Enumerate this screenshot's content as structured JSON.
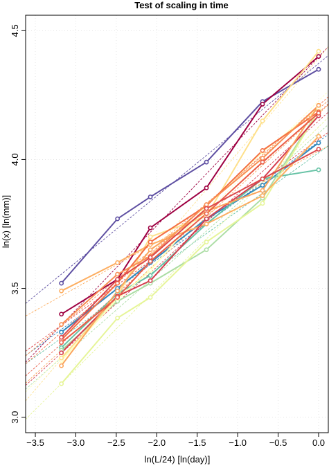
{
  "chart_data": {
    "type": "line",
    "title": "Test of scaling in time",
    "xlabel": "ln(L/24) [ln(day)]",
    "ylabel": "ln(x) [ln(mm)]",
    "xlim": [
      -3.62,
      0.12
    ],
    "ylim": [
      2.94,
      4.56
    ],
    "xticks": [
      -3.5,
      -3.0,
      -2.5,
      -2.0,
      -1.5,
      -1.0,
      -0.5,
      0.0
    ],
    "xtick_labels": [
      "−3.5",
      "−3.0",
      "−2.5",
      "−2.0",
      "−1.5",
      "−1.0",
      "−0.5",
      "0.0"
    ],
    "yticks": [
      3.0,
      3.5,
      4.0,
      4.5
    ],
    "ytick_labels": [
      "3.0",
      "3.5",
      "4.0",
      "4.5"
    ],
    "grid": true,
    "x": [
      -3.178,
      -2.485,
      -2.079,
      -1.386,
      -0.693,
      0.0
    ],
    "series": [
      {
        "color": "#5e4fa2",
        "values": [
          3.52,
          3.77,
          3.855,
          3.99,
          4.225,
          4.35
        ]
      },
      {
        "color": "#9e0142",
        "values": [
          3.4,
          3.535,
          3.735,
          3.89,
          4.215,
          4.4
        ]
      },
      {
        "color": "#3288bd",
        "values": [
          3.33,
          3.5,
          3.6,
          3.77,
          3.9,
          4.065
        ]
      },
      {
        "color": "#66c2a5",
        "values": [
          3.27,
          3.48,
          3.55,
          3.75,
          3.925,
          3.96
        ]
      },
      {
        "color": "#abdda4",
        "values": [
          3.26,
          3.45,
          3.52,
          3.65,
          3.85,
          4.19
        ]
      },
      {
        "color": "#e6f598",
        "values": [
          3.13,
          3.385,
          3.465,
          3.68,
          3.83,
          4.19
        ]
      },
      {
        "color": "#ffffbf",
        "values": [
          3.22,
          3.46,
          3.57,
          3.82,
          4.03,
          4.2
        ]
      },
      {
        "color": "#fee08b",
        "values": [
          3.23,
          3.47,
          3.7,
          3.78,
          4.15,
          4.42
        ]
      },
      {
        "color": "#fdae61",
        "values": [
          3.49,
          3.6,
          3.67,
          3.75,
          3.86,
          4.09
        ]
      },
      {
        "color": "#f46d43",
        "values": [
          3.3,
          3.52,
          3.68,
          3.82,
          4.035,
          4.185
        ]
      },
      {
        "color": "#d53e4f",
        "values": [
          3.25,
          3.47,
          3.53,
          3.77,
          3.925,
          4.17
        ]
      },
      {
        "color": "#f88d52",
        "values": [
          3.36,
          3.555,
          3.625,
          3.825,
          4.005,
          4.21
        ]
      },
      {
        "color": "#fba45c",
        "values": [
          3.2,
          3.49,
          3.65,
          3.8,
          3.88,
          4.21
        ]
      },
      {
        "color": "#e95d47",
        "values": [
          3.29,
          3.465,
          3.605,
          3.79,
          3.99,
          4.18
        ]
      },
      {
        "color": "#dc494c",
        "values": [
          3.31,
          3.535,
          3.62,
          3.81,
          3.925,
          4.04
        ]
      }
    ]
  }
}
